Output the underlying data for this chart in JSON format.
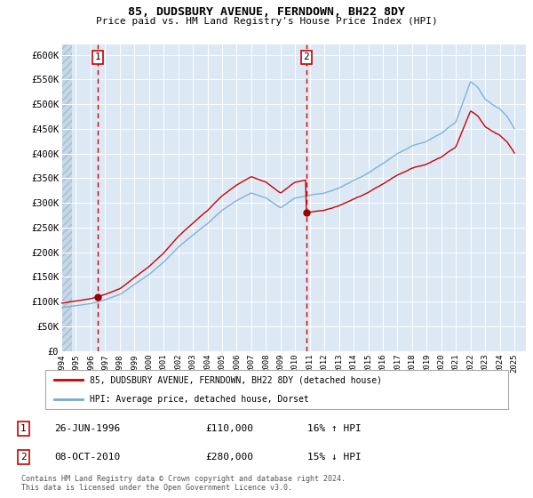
{
  "title": "85, DUDSBURY AVENUE, FERNDOWN, BH22 8DY",
  "subtitle": "Price paid vs. HM Land Registry's House Price Index (HPI)",
  "ytick_labels": [
    "£0",
    "£50K",
    "£100K",
    "£150K",
    "£200K",
    "£250K",
    "£300K",
    "£350K",
    "£400K",
    "£450K",
    "£500K",
    "£550K",
    "£600K"
  ],
  "yticks": [
    0,
    50000,
    100000,
    150000,
    200000,
    250000,
    300000,
    350000,
    400000,
    450000,
    500000,
    550000,
    600000
  ],
  "xtick_years": [
    1994,
    1995,
    1996,
    1997,
    1998,
    1999,
    2000,
    2001,
    2002,
    2003,
    2004,
    2005,
    2006,
    2007,
    2008,
    2009,
    2010,
    2011,
    2012,
    2013,
    2014,
    2015,
    2016,
    2017,
    2018,
    2019,
    2020,
    2021,
    2022,
    2023,
    2024,
    2025
  ],
  "hpi_color": "#7aaad0",
  "price_color": "#cc0000",
  "vline_color": "#cc0000",
  "dot_color": "#990000",
  "bg_color": "#dce9f5",
  "legend_label_price": "85, DUDSBURY AVENUE, FERNDOWN, BH22 8DY (detached house)",
  "legend_label_hpi": "HPI: Average price, detached house, Dorset",
  "transaction1_date": "26-JUN-1996",
  "transaction1_price": "£110,000",
  "transaction1_hpi": "16% ↑ HPI",
  "transaction2_date": "08-OCT-2010",
  "transaction2_price": "£280,000",
  "transaction2_hpi": "15% ↓ HPI",
  "footer": "Contains HM Land Registry data © Crown copyright and database right 2024.\nThis data is licensed under the Open Government Licence v3.0.",
  "sale1_x": 1996.48,
  "sale1_y": 110000,
  "sale2_x": 2010.77,
  "sale2_y": 280000
}
